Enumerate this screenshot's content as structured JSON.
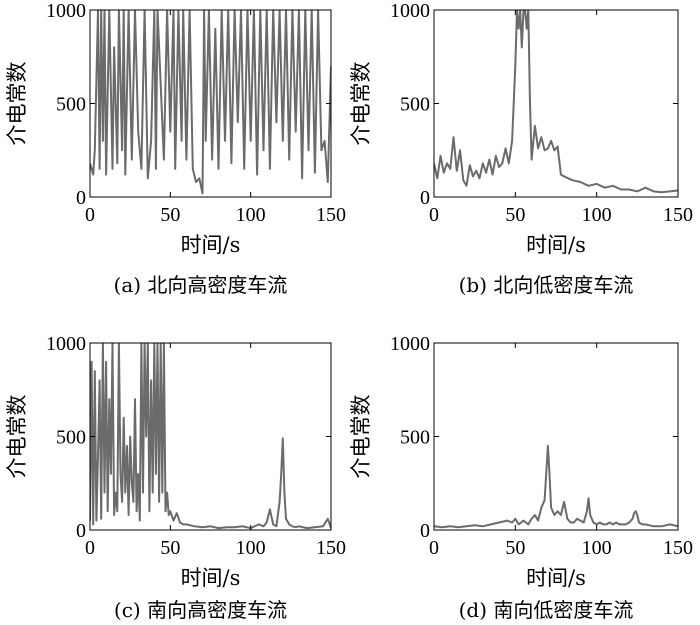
{
  "chart_data": [
    {
      "type": "line",
      "caption": "(a) 北向高密度车流",
      "xlabel": "时间/s",
      "ylabel": "介电常数",
      "xlim": [
        0,
        150
      ],
      "ylim": [
        0,
        1000
      ],
      "xticks": [
        0,
        50,
        100,
        150
      ],
      "yticks": [
        0,
        500,
        1000
      ],
      "grid": false,
      "color": "#6b6b6b",
      "x": [
        0,
        2,
        3,
        5,
        6,
        7,
        8,
        9,
        10,
        12,
        14,
        15,
        17,
        18,
        20,
        21,
        22,
        24,
        26,
        28,
        30,
        32,
        34,
        36,
        38,
        40,
        41,
        42,
        44,
        46,
        48,
        50,
        52,
        53,
        55,
        57,
        58,
        60,
        62,
        64,
        66,
        68,
        70,
        71,
        72,
        74,
        76,
        78,
        80,
        82,
        84,
        86,
        88,
        90,
        92,
        94,
        96,
        98,
        100,
        102,
        104,
        106,
        108,
        110,
        112,
        114,
        116,
        118,
        120,
        122,
        124,
        126,
        128,
        130,
        132,
        134,
        136,
        138,
        140,
        142,
        144,
        146,
        148,
        150
      ],
      "y": [
        180,
        120,
        250,
        1000,
        150,
        1000,
        300,
        1000,
        120,
        1000,
        150,
        800,
        180,
        1000,
        250,
        1000,
        120,
        1000,
        200,
        1000,
        350,
        150,
        1000,
        100,
        300,
        1000,
        150,
        1000,
        600,
        200,
        1000,
        350,
        1000,
        150,
        1000,
        300,
        1000,
        200,
        1000,
        150,
        80,
        100,
        20,
        1000,
        300,
        1000,
        200,
        900,
        150,
        1000,
        300,
        1000,
        180,
        1000,
        400,
        1000,
        150,
        1000,
        300,
        1000,
        120,
        1000,
        250,
        1000,
        150,
        1000,
        400,
        1000,
        300,
        1000,
        200,
        1000,
        350,
        1000,
        100,
        1000,
        250,
        1000,
        130,
        1000,
        250,
        300,
        80,
        700
      ]
    },
    {
      "type": "line",
      "caption": "(b) 北向低密度车流",
      "xlabel": "时间/s",
      "ylabel": "介电常数",
      "xlim": [
        0,
        150
      ],
      "ylim": [
        0,
        1000
      ],
      "xticks": [
        0,
        50,
        100,
        150
      ],
      "yticks": [
        0,
        500,
        1000
      ],
      "grid": false,
      "color": "#6b6b6b",
      "x": [
        0,
        2,
        4,
        6,
        8,
        10,
        12,
        14,
        16,
        18,
        20,
        22,
        24,
        26,
        28,
        30,
        32,
        34,
        36,
        38,
        40,
        42,
        44,
        46,
        48,
        50,
        51,
        52,
        53,
        54,
        55,
        56,
        57,
        58,
        59,
        60,
        62,
        64,
        66,
        68,
        70,
        72,
        74,
        76,
        78,
        80,
        85,
        90,
        95,
        100,
        105,
        110,
        115,
        120,
        125,
        130,
        135,
        140,
        145,
        150
      ],
      "y": [
        180,
        100,
        220,
        130,
        180,
        150,
        320,
        140,
        250,
        90,
        60,
        170,
        110,
        140,
        100,
        180,
        130,
        200,
        120,
        220,
        160,
        180,
        260,
        180,
        300,
        700,
        1000,
        900,
        1000,
        800,
        1000,
        1000,
        900,
        1000,
        500,
        200,
        380,
        260,
        320,
        250,
        260,
        300,
        250,
        270,
        120,
        110,
        90,
        80,
        60,
        70,
        50,
        60,
        40,
        40,
        30,
        50,
        30,
        25,
        30,
        35
      ]
    },
    {
      "type": "line",
      "caption": "(c) 南向高密度车流",
      "xlabel": "时间/s",
      "ylabel": "介电常数",
      "xlim": [
        0,
        150
      ],
      "ylim": [
        0,
        1000
      ],
      "xticks": [
        0,
        50,
        100,
        150
      ],
      "yticks": [
        0,
        500,
        1000
      ],
      "grid": false,
      "color": "#6b6b6b",
      "x": [
        0,
        1,
        2,
        3,
        4,
        5,
        6,
        7,
        8,
        9,
        10,
        11,
        12,
        13,
        14,
        15,
        16,
        17,
        18,
        19,
        20,
        21,
        22,
        23,
        24,
        25,
        26,
        27,
        28,
        29,
        30,
        31,
        32,
        33,
        34,
        35,
        36,
        37,
        38,
        39,
        40,
        41,
        42,
        43,
        44,
        45,
        46,
        47,
        48,
        49,
        50,
        52,
        54,
        56,
        58,
        60,
        65,
        70,
        75,
        80,
        85,
        90,
        95,
        100,
        105,
        108,
        110,
        112,
        114,
        116,
        118,
        119,
        120,
        121,
        122,
        124,
        126,
        128,
        130,
        135,
        140,
        145,
        148,
        150
      ],
      "y": [
        50,
        900,
        30,
        850,
        50,
        400,
        800,
        60,
        1000,
        200,
        900,
        100,
        700,
        300,
        1000,
        80,
        200,
        100,
        1000,
        300,
        150,
        600,
        200,
        450,
        80,
        500,
        250,
        150,
        700,
        100,
        300,
        50,
        1000,
        200,
        1000,
        500,
        1000,
        100,
        800,
        200,
        1000,
        300,
        1000,
        150,
        1000,
        200,
        1000,
        100,
        200,
        80,
        100,
        50,
        90,
        40,
        30,
        30,
        20,
        15,
        20,
        10,
        15,
        15,
        20,
        10,
        30,
        20,
        40,
        110,
        30,
        20,
        150,
        300,
        490,
        200,
        60,
        30,
        20,
        15,
        20,
        10,
        15,
        20,
        60,
        10
      ]
    },
    {
      "type": "line",
      "caption": "(d) 南向低密度车流",
      "xlabel": "时间/s",
      "ylabel": "介电常数",
      "xlim": [
        0,
        150
      ],
      "ylim": [
        0,
        1000
      ],
      "xticks": [
        0,
        50,
        100,
        150
      ],
      "yticks": [
        0,
        500,
        1000
      ],
      "grid": false,
      "color": "#6b6b6b",
      "x": [
        0,
        5,
        10,
        15,
        20,
        25,
        30,
        35,
        40,
        45,
        48,
        50,
        52,
        55,
        58,
        60,
        62,
        64,
        66,
        68,
        69,
        70,
        71,
        72,
        74,
        76,
        78,
        80,
        82,
        84,
        86,
        88,
        90,
        92,
        94,
        95,
        96,
        98,
        100,
        102,
        104,
        106,
        108,
        110,
        112,
        114,
        116,
        118,
        120,
        122,
        123,
        124,
        125,
        126,
        128,
        130,
        135,
        140,
        145,
        150
      ],
      "y": [
        20,
        15,
        20,
        15,
        20,
        25,
        20,
        30,
        40,
        50,
        40,
        60,
        30,
        50,
        30,
        60,
        80,
        50,
        120,
        160,
        300,
        450,
        300,
        120,
        80,
        100,
        80,
        150,
        60,
        40,
        40,
        60,
        50,
        40,
        100,
        170,
        80,
        40,
        30,
        40,
        30,
        30,
        40,
        30,
        40,
        30,
        30,
        30,
        40,
        60,
        90,
        100,
        80,
        40,
        30,
        30,
        20,
        20,
        30,
        20
      ]
    }
  ]
}
